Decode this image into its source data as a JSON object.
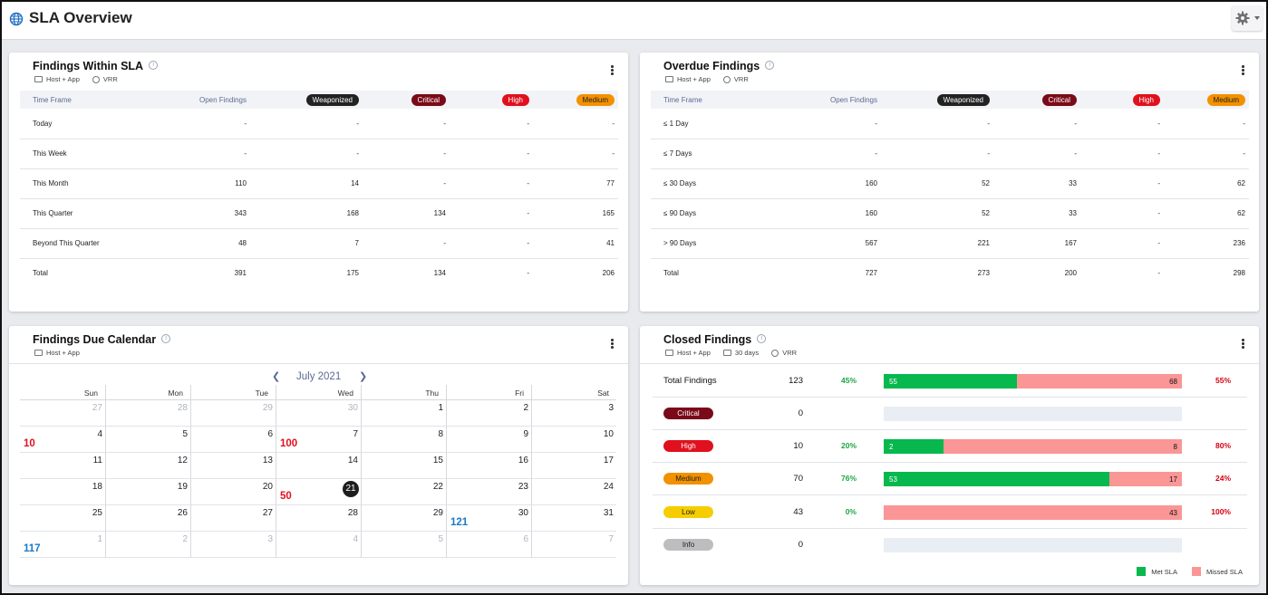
{
  "page": {
    "title": "SLA Overview"
  },
  "colors": {
    "met": "#06b84d",
    "missed": "#fb9696",
    "weaponized": "#222222",
    "critical": "#7a0a18",
    "high": "#e0101e",
    "medium": "#f29100",
    "low": "#f5cd00",
    "info": "#bdbdbf",
    "accent_red": "#e0101e",
    "accent_blue": "#1a79c9"
  },
  "icons": {
    "globe": "globe-icon",
    "gear": "gear-icon",
    "info": "info-icon",
    "kebab": "kebab-icon",
    "monitor": "monitor-icon",
    "shield": "shield-icon",
    "calendar": "calendar-icon"
  },
  "within": {
    "title": "Findings Within SLA",
    "tag1": "Host + App",
    "tag2": "VRR",
    "headers": [
      "Time Frame",
      "Open Findings",
      "Weaponized",
      "Critical",
      "High",
      "Medium"
    ],
    "rows": [
      [
        "Today",
        "-",
        "-",
        "-",
        "-",
        "-"
      ],
      [
        "This Week",
        "-",
        "-",
        "-",
        "-",
        "-"
      ],
      [
        "This Month",
        "110",
        "14",
        "-",
        "-",
        "77"
      ],
      [
        "This Quarter",
        "343",
        "168",
        "134",
        "-",
        "165"
      ],
      [
        "Beyond This Quarter",
        "48",
        "7",
        "-",
        "-",
        "41"
      ],
      [
        "Total",
        "391",
        "175",
        "134",
        "-",
        "206"
      ]
    ]
  },
  "overdue": {
    "title": "Overdue Findings",
    "tag1": "Host + App",
    "tag2": "VRR",
    "headers": [
      "Time Frame",
      "Open Findings",
      "Weaponized",
      "Critical",
      "High",
      "Medium"
    ],
    "rows": [
      [
        "≤ 1 Day",
        "-",
        "-",
        "-",
        "-",
        "-"
      ],
      [
        "≤ 7 Days",
        "-",
        "-",
        "-",
        "-",
        "-"
      ],
      [
        "≤ 30 Days",
        "160",
        "52",
        "33",
        "-",
        "62"
      ],
      [
        "≤ 90 Days",
        "160",
        "52",
        "33",
        "-",
        "62"
      ],
      [
        "> 90 Days",
        "567",
        "221",
        "167",
        "-",
        "236"
      ],
      [
        "Total",
        "727",
        "273",
        "200",
        "-",
        "298"
      ]
    ]
  },
  "calendar": {
    "title": "Findings Due Calendar",
    "tag1": "Host + App",
    "month": "July 2021",
    "weekdays": [
      "Sun",
      "Mon",
      "Tue",
      "Wed",
      "Thu",
      "Fri",
      "Sat"
    ],
    "weeks": [
      [
        {
          "d": "27",
          "m": true
        },
        {
          "d": "28",
          "m": true
        },
        {
          "d": "29",
          "m": true
        },
        {
          "d": "30",
          "m": true
        },
        {
          "d": "1"
        },
        {
          "d": "2"
        },
        {
          "d": "3"
        }
      ],
      [
        {
          "d": "4",
          "badge": "10",
          "c": "red"
        },
        {
          "d": "5"
        },
        {
          "d": "6"
        },
        {
          "d": "7"
        },
        {
          "d": "8",
          "badge": "100",
          "c": "red",
          "prev": true
        },
        {
          "d": "9"
        },
        {
          "d": "10"
        }
      ],
      [
        {
          "d": "11"
        },
        {
          "d": "12"
        },
        {
          "d": "13"
        },
        {
          "d": "14"
        },
        {
          "d": "15"
        },
        {
          "d": "16"
        },
        {
          "d": "17"
        }
      ],
      [
        {
          "d": "18"
        },
        {
          "d": "19"
        },
        {
          "d": "20"
        },
        {
          "d": "21",
          "today": true
        },
        {
          "d": "22",
          "badge": "50",
          "c": "red",
          "prev": true
        },
        {
          "d": "23"
        },
        {
          "d": "24"
        }
      ],
      [
        {
          "d": "25"
        },
        {
          "d": "26"
        },
        {
          "d": "27"
        },
        {
          "d": "28"
        },
        {
          "d": "29"
        },
        {
          "d": "30"
        },
        {
          "d": "31",
          "badge": "121",
          "c": "blue",
          "prev": true
        }
      ],
      [
        {
          "d": "1",
          "m": true,
          "badge": "117",
          "c": "blue"
        },
        {
          "d": "2",
          "m": true
        },
        {
          "d": "3",
          "m": true
        },
        {
          "d": "4",
          "m": true
        },
        {
          "d": "5",
          "m": true
        },
        {
          "d": "6",
          "m": true
        },
        {
          "d": "7",
          "m": true
        }
      ]
    ]
  },
  "closed": {
    "title": "Closed Findings",
    "tag1": "Host + App",
    "tag2": "30 days",
    "tag3": "VRR",
    "rows": [
      {
        "label": "Total Findings",
        "sev": "",
        "count": "123",
        "met_pct": "45%",
        "met": 55,
        "missed": 68,
        "met_label": "55",
        "missed_label": "68",
        "missed_pct": "55%"
      },
      {
        "label": "Critical",
        "sev": "crit",
        "count": "0",
        "met_pct": "",
        "met": 0,
        "missed": 0,
        "met_label": "",
        "missed_label": "",
        "missed_pct": ""
      },
      {
        "label": "High",
        "sev": "high",
        "count": "10",
        "met_pct": "20%",
        "met": 2,
        "missed": 8,
        "met_label": "2",
        "missed_label": "8",
        "missed_pct": "80%"
      },
      {
        "label": "Medium",
        "sev": "med",
        "count": "70",
        "met_pct": "76%",
        "met": 53,
        "missed": 17,
        "met_label": "53",
        "missed_label": "17",
        "missed_pct": "24%"
      },
      {
        "label": "Low",
        "sev": "low",
        "count": "43",
        "met_pct": "0%",
        "met": 0,
        "missed": 43,
        "met_label": "",
        "missed_label": "43",
        "missed_pct": "100%"
      },
      {
        "label": "Info",
        "sev": "info",
        "count": "0",
        "met_pct": "",
        "met": 0,
        "missed": 0,
        "met_label": "",
        "missed_label": "",
        "missed_pct": ""
      }
    ],
    "legend": {
      "met": "Met SLA",
      "missed": "Missed SLA"
    }
  }
}
